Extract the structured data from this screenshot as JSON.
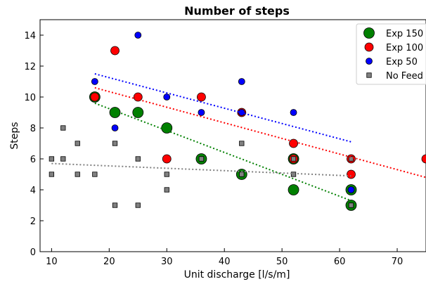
{
  "chart_data": {
    "type": "scatter",
    "title": "Number of steps",
    "xlabel": "Unit discharge [l/s/m]",
    "ylabel": "Steps",
    "xlim": [
      8,
      75
    ],
    "ylim": [
      0,
      15
    ],
    "xticks": [
      10,
      20,
      30,
      40,
      50,
      60,
      70
    ],
    "yticks": [
      0,
      2,
      4,
      6,
      8,
      10,
      12,
      14
    ],
    "grid": false,
    "legend_position": "top-right",
    "series": [
      {
        "name": "Exp 150",
        "color": "#008000",
        "marker": "circle-large",
        "points": [
          [
            17.5,
            10
          ],
          [
            21,
            9
          ],
          [
            25,
            9
          ],
          [
            30,
            8
          ],
          [
            36,
            6
          ],
          [
            43,
            5
          ],
          [
            52,
            6
          ],
          [
            52,
            4
          ],
          [
            62,
            4
          ],
          [
            62,
            3
          ]
        ],
        "trend": [
          [
            17.5,
            9.6
          ],
          [
            62,
            3.3
          ]
        ]
      },
      {
        "name": "Exp 100",
        "color": "#ff0000",
        "marker": "circle-medium",
        "points": [
          [
            17.5,
            10
          ],
          [
            21,
            13
          ],
          [
            25,
            10
          ],
          [
            30,
            6
          ],
          [
            36,
            10
          ],
          [
            43,
            9
          ],
          [
            52,
            7
          ],
          [
            52,
            6
          ],
          [
            62,
            6
          ],
          [
            62,
            5
          ],
          [
            75,
            6
          ]
        ],
        "trend": [
          [
            17.5,
            10.6
          ],
          [
            75,
            4.8
          ]
        ]
      },
      {
        "name": "Exp 50",
        "color": "#0000ff",
        "marker": "circle-small",
        "points": [
          [
            17.5,
            11
          ],
          [
            21,
            8
          ],
          [
            25,
            14
          ],
          [
            30,
            10
          ],
          [
            36,
            9
          ],
          [
            43,
            11
          ],
          [
            43,
            9
          ],
          [
            52,
            9
          ],
          [
            62,
            4
          ]
        ],
        "trend": [
          [
            17.5,
            11.5
          ],
          [
            62,
            7.1
          ]
        ]
      },
      {
        "name": "No Feed",
        "color": "#808080",
        "marker": "square",
        "points": [
          [
            10,
            6
          ],
          [
            10,
            5
          ],
          [
            12,
            8
          ],
          [
            12,
            6
          ],
          [
            14.5,
            7
          ],
          [
            14.5,
            5
          ],
          [
            17.5,
            5
          ],
          [
            21,
            7
          ],
          [
            21,
            3
          ],
          [
            25,
            6
          ],
          [
            25,
            3
          ],
          [
            30,
            5
          ],
          [
            30,
            4
          ],
          [
            36,
            6
          ],
          [
            43,
            7
          ],
          [
            43,
            5
          ],
          [
            52,
            6
          ],
          [
            52,
            5
          ],
          [
            62,
            6
          ],
          [
            62,
            3
          ]
        ],
        "trend": [
          [
            10,
            5.7
          ],
          [
            62,
            4.9
          ]
        ]
      }
    ]
  }
}
